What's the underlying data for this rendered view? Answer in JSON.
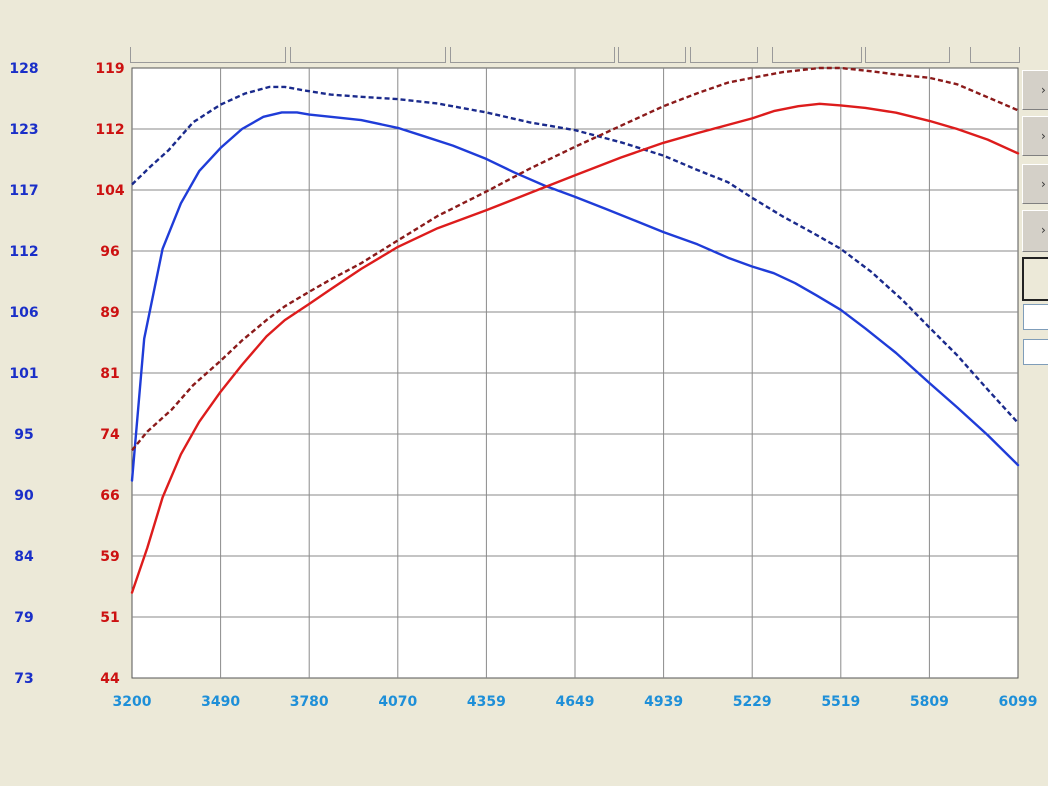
{
  "chart_data": {
    "type": "line",
    "title": "",
    "xlabel": "",
    "x_ticks": [
      "3200",
      "3490",
      "3780",
      "4070",
      "4359",
      "4649",
      "4939",
      "5229",
      "5519",
      "5809",
      "6099"
    ],
    "xlim": [
      3200,
      6099
    ],
    "left_axis_ticks": [
      "128",
      "123",
      "117",
      "112",
      "106",
      "101",
      "95",
      "90",
      "84",
      "79",
      "73"
    ],
    "left_axis_range": [
      73,
      128
    ],
    "left_axis_color": "#1a2fc8",
    "right_axis_ticks": [
      "119",
      "112",
      "104",
      "96",
      "89",
      "81",
      "74",
      "66",
      "59",
      "51",
      "44"
    ],
    "right_axis_range": [
      44,
      119
    ],
    "right_axis_color": "#cc1111",
    "x_tick_color": "#1e8fd8",
    "grid": true,
    "series": [
      {
        "axis": "left",
        "style": "solid",
        "color": "#1f3cd8",
        "x": [
          3200,
          3240,
          3300,
          3360,
          3420,
          3490,
          3560,
          3630,
          3690,
          3740,
          3780,
          3850,
          3950,
          4070,
          4150,
          4250,
          4359,
          4450,
          4550,
          4649,
          4750,
          4850,
          4939,
          5050,
          5150,
          5229,
          5300,
          5370,
          5440,
          5519,
          5600,
          5700,
          5809,
          5900,
          6000,
          6099
        ],
        "values": [
          90.8,
          103.6,
          111.7,
          115.8,
          118.7,
          120.8,
          122.5,
          123.6,
          124.0,
          124.0,
          123.8,
          123.6,
          123.3,
          122.6,
          121.9,
          121.0,
          119.8,
          118.6,
          117.4,
          116.4,
          115.3,
          114.2,
          113.2,
          112.1,
          110.9,
          110.1,
          109.5,
          108.6,
          107.5,
          106.2,
          104.5,
          102.3,
          99.6,
          97.4,
          94.9,
          92.2
        ]
      },
      {
        "axis": "left",
        "style": "dashed",
        "color": "#1a2a8c",
        "x": [
          3200,
          3260,
          3320,
          3400,
          3490,
          3570,
          3650,
          3700,
          3760,
          3850,
          3950,
          4070,
          4200,
          4359,
          4500,
          4649,
          4800,
          4939,
          5050,
          5150,
          5229,
          5330,
          5430,
          5519,
          5620,
          5720,
          5809,
          5900,
          6000,
          6099
        ],
        "values": [
          117.5,
          119.1,
          120.6,
          123.1,
          124.7,
          125.7,
          126.3,
          126.3,
          126.0,
          125.6,
          125.4,
          125.2,
          124.8,
          124.0,
          123.1,
          122.4,
          121.3,
          120.1,
          118.8,
          117.7,
          116.3,
          114.6,
          113.1,
          111.7,
          109.6,
          107.1,
          104.6,
          102.1,
          99.0,
          96.0
        ]
      },
      {
        "axis": "right",
        "style": "solid",
        "color": "#dd1c1c",
        "x": [
          3200,
          3250,
          3300,
          3360,
          3420,
          3490,
          3560,
          3640,
          3700,
          3780,
          3850,
          3950,
          4070,
          4200,
          4359,
          4500,
          4649,
          4800,
          4939,
          5050,
          5150,
          5229,
          5300,
          5380,
          5450,
          5519,
          5600,
          5700,
          5809,
          5900,
          6000,
          6099
        ],
        "values": [
          54.5,
          60.0,
          66.2,
          71.5,
          75.5,
          79.2,
          82.5,
          86.0,
          88.0,
          90.0,
          91.8,
          94.3,
          97.0,
          99.3,
          101.5,
          103.6,
          105.8,
          108.0,
          109.8,
          111.0,
          112.0,
          112.8,
          113.7,
          114.3,
          114.6,
          114.4,
          114.1,
          113.5,
          112.5,
          111.5,
          110.2,
          108.5
        ]
      },
      {
        "axis": "right",
        "style": "dashed",
        "color": "#8b1a1a",
        "x": [
          3200,
          3250,
          3330,
          3400,
          3490,
          3560,
          3640,
          3700,
          3780,
          3850,
          3950,
          4070,
          4200,
          4359,
          4500,
          4649,
          4800,
          4939,
          5050,
          5150,
          5229,
          5330,
          5450,
          5519,
          5620,
          5700,
          5809,
          5900,
          6000,
          6099
        ],
        "values": [
          72.0,
          74.3,
          77.0,
          80.0,
          83.0,
          85.5,
          88.0,
          89.7,
          91.5,
          93.0,
          95.0,
          97.8,
          100.8,
          103.8,
          106.6,
          109.3,
          111.9,
          114.3,
          115.9,
          117.2,
          117.8,
          118.5,
          119.0,
          119.0,
          118.6,
          118.2,
          117.8,
          117.0,
          115.4,
          113.8
        ]
      }
    ]
  }
}
